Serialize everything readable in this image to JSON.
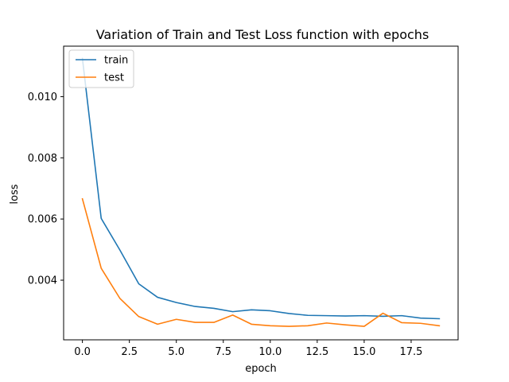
{
  "chart_data": {
    "type": "line",
    "title": "Variation of Train and Test Loss function with epochs",
    "xlabel": "epoch",
    "ylabel": "loss",
    "xlim": [
      -1.0,
      20.0
    ],
    "ylim": [
      0.00205,
      0.01165
    ],
    "xticks": [
      0.0,
      2.5,
      5.0,
      7.5,
      10.0,
      12.5,
      15.0,
      17.5
    ],
    "xtick_labels": [
      "0.0",
      "2.5",
      "5.0",
      "7.5",
      "10.0",
      "12.5",
      "15.0",
      "17.5"
    ],
    "yticks": [
      0.004,
      0.006,
      0.008,
      0.01
    ],
    "ytick_labels": [
      "0.004",
      "0.006",
      "0.008",
      "0.010"
    ],
    "grid": false,
    "legend_position": "top-left",
    "x": [
      0,
      1,
      2,
      3,
      4,
      5,
      6,
      7,
      8,
      9,
      10,
      11,
      12,
      13,
      14,
      15,
      16,
      17,
      18,
      19
    ],
    "series": [
      {
        "name": "train",
        "color": "#1f77b4",
        "values": [
          0.01125,
          0.00602,
          0.00498,
          0.00388,
          0.00344,
          0.00327,
          0.00314,
          0.00308,
          0.00297,
          0.00303,
          0.003,
          0.00291,
          0.00285,
          0.00284,
          0.00283,
          0.00284,
          0.00282,
          0.00284,
          0.00276,
          0.00274
        ]
      },
      {
        "name": "test",
        "color": "#ff7f0e",
        "values": [
          0.00666,
          0.00439,
          0.0034,
          0.00281,
          0.00256,
          0.00272,
          0.00262,
          0.00262,
          0.00286,
          0.00256,
          0.00251,
          0.00249,
          0.00251,
          0.0026,
          0.00254,
          0.00249,
          0.00292,
          0.00261,
          0.00259,
          0.00251
        ]
      }
    ]
  }
}
